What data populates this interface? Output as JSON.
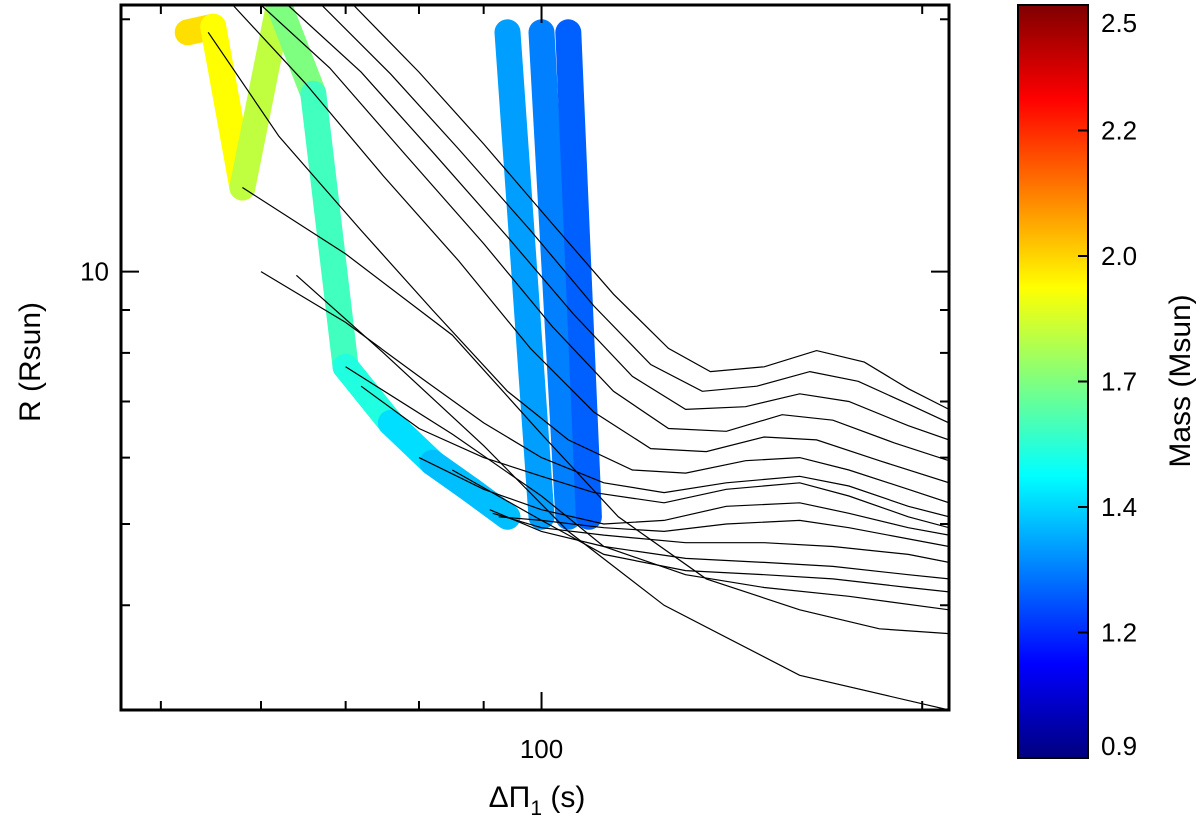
{
  "chart_data": {
    "type": "scatter",
    "xlabel": "ΔΠ",
    "xlabel_subscript": "1",
    "xlabel_unit": " (s)",
    "ylabel": "R (Rsun)",
    "x_scale": "log",
    "y_scale": "log",
    "xlim": [
      46.5,
      210
    ],
    "ylim": [
      3.0,
      20.8
    ],
    "x_major_ticks": [
      {
        "value": 100,
        "label": "100"
      }
    ],
    "x_minor_ticks": [
      50,
      60,
      70,
      80,
      90,
      200
    ],
    "y_major_ticks": [
      {
        "value": 10,
        "label": "10"
      }
    ],
    "y_minor_ticks": [
      4,
      5,
      6,
      7,
      8,
      9,
      20
    ],
    "grid": false,
    "colorbar": {
      "label": "Mass (Msun)",
      "range": [
        0.9,
        2.5
      ],
      "ticks": [
        "0.9",
        "1.2",
        "1.4",
        "1.7",
        "2.0",
        "2.2",
        "2.5"
      ],
      "colormap": "jet",
      "colormap_stops": [
        "#00007f",
        "#0000ff",
        "#007fff",
        "#00ffff",
        "#7fff7f",
        "#ffff00",
        "#ff7f00",
        "#ff0000",
        "#7f0000"
      ]
    },
    "line_color": "#000000",
    "tracks": [
      {
        "mass": 1.0,
        "x": [
          64.0,
          75.0,
          90.0,
          105.0,
          125.0,
          160.0,
          210.0
        ],
        "y": [
          9.9,
          8.0,
          6.2,
          4.9,
          4.0,
          3.3,
          3.0
        ]
      },
      {
        "mass": 1.1,
        "x": [
          58.0,
          70.0,
          85.0,
          100.0,
          115.0,
          135.0,
          160.0,
          185.0,
          210.0
        ],
        "y": [
          12.6,
          10.5,
          8.4,
          6.4,
          5.1,
          4.3,
          3.95,
          3.75,
          3.7
        ]
      },
      {
        "mass": 1.2,
        "x": [
          70.0,
          85.0,
          100.0,
          112.0,
          130.0,
          150.0,
          175.0,
          210.0
        ],
        "y": [
          7.7,
          6.4,
          5.4,
          4.7,
          4.35,
          4.2,
          4.1,
          3.95
        ]
      },
      {
        "mass": 1.3,
        "x": [
          85.0,
          100.0,
          112.0,
          130.0,
          150.0,
          170.0,
          195.0,
          210.0
        ],
        "y": [
          5.8,
          5.05,
          4.6,
          4.4,
          4.35,
          4.3,
          4.2,
          4.15
        ]
      },
      {
        "mass": 1.4,
        "x": [
          91.0,
          100.0,
          112.0,
          130.0,
          150.0,
          170.0,
          195.0,
          210.0
        ],
        "y": [
          5.2,
          4.9,
          4.7,
          4.55,
          4.5,
          4.45,
          4.35,
          4.3
        ]
      },
      {
        "mass": 1.5,
        "x": [
          91.5,
          100.0,
          112.0,
          130.0,
          150.0,
          170.0,
          195.0,
          210.0
        ],
        "y": [
          5.15,
          4.95,
          4.85,
          4.75,
          4.75,
          4.7,
          4.6,
          4.5
        ]
      },
      {
        "mass": 1.55,
        "x": [
          92.5,
          100.0,
          112.0,
          125.0,
          140.0,
          160.0,
          175.0,
          195.0,
          210.0
        ],
        "y": [
          5.1,
          5.05,
          4.95,
          4.9,
          5.0,
          5.05,
          4.95,
          4.8,
          4.7
        ]
      },
      {
        "mass": 1.6,
        "x": [
          80.0,
          90.0,
          100.0,
          112.0,
          125.0,
          140.0,
          160.0,
          175.0,
          195.0,
          210.0
        ],
        "y": [
          6.0,
          5.5,
          5.2,
          5.0,
          5.05,
          5.25,
          5.3,
          5.15,
          4.95,
          4.85
        ]
      },
      {
        "mass": 1.65,
        "x": [
          72.0,
          80.0,
          90.0,
          100.0,
          110.0,
          125.0,
          140.0,
          160.0,
          175.0,
          195.0,
          210.0
        ],
        "y": [
          7.3,
          6.5,
          6.0,
          5.7,
          5.45,
          5.3,
          5.5,
          5.6,
          5.4,
          5.1,
          4.95
        ]
      },
      {
        "mass": 1.7,
        "x": [
          60.0,
          70.0,
          80.0,
          90.0,
          100.0,
          112.0,
          125.0,
          140.0,
          160.0,
          175.0,
          195.0,
          210.0
        ],
        "y": [
          10.0,
          8.7,
          7.5,
          6.6,
          6.0,
          5.6,
          5.45,
          5.6,
          5.7,
          5.55,
          5.25,
          5.1
        ]
      },
      {
        "mass": 1.75,
        "x": [
          54.5,
          62.0,
          72.0,
          82.0,
          94.0,
          105.0,
          118.0,
          130.0,
          145.0,
          160.0,
          175.0,
          195.0,
          210.0
        ],
        "y": [
          19.3,
          14.5,
          11.2,
          9.0,
          7.2,
          6.3,
          5.8,
          5.75,
          5.95,
          6.0,
          5.8,
          5.5,
          5.3
        ]
      },
      {
        "mass": 1.8,
        "x": [
          57.0,
          65.0,
          75.0,
          86.0,
          98.0,
          110.0,
          122.0,
          135.0,
          150.0,
          165.0,
          185.0,
          210.0
        ],
        "y": [
          20.8,
          16.8,
          13.0,
          10.3,
          8.1,
          6.8,
          6.15,
          6.1,
          6.35,
          6.3,
          5.95,
          5.6
        ]
      },
      {
        "mass": 1.85,
        "x": [
          60.0,
          68.0,
          78.0,
          90.0,
          102.0,
          114.0,
          126.0,
          140.0,
          155.0,
          170.0,
          190.0,
          210.0
        ],
        "y": [
          20.8,
          17.5,
          13.8,
          10.8,
          8.6,
          7.2,
          6.5,
          6.45,
          6.75,
          6.65,
          6.25,
          5.95
        ]
      },
      {
        "mass": 1.9,
        "x": [
          63.0,
          72.0,
          82.0,
          94.0,
          106.0,
          118.0,
          130.0,
          145.0,
          160.0,
          175.0,
          195.0,
          210.0
        ],
        "y": [
          20.8,
          17.3,
          13.9,
          11.0,
          8.9,
          7.5,
          6.85,
          6.9,
          7.15,
          7.0,
          6.55,
          6.3
        ]
      },
      {
        "mass": 1.95,
        "x": [
          67.0,
          76.0,
          86.0,
          98.0,
          110.0,
          122.0,
          134.0,
          148.0,
          163.0,
          178.0,
          195.0,
          210.0
        ],
        "y": [
          20.8,
          17.2,
          14.0,
          11.2,
          9.1,
          7.75,
          7.2,
          7.3,
          7.6,
          7.4,
          6.95,
          6.6
        ]
      },
      {
        "mass": 2.0,
        "x": [
          71.0,
          80.0,
          90.0,
          102.0,
          114.0,
          126.0,
          136.0,
          150.0,
          165.0,
          180.0,
          195.0,
          210.0
        ],
        "y": [
          20.8,
          17.3,
          14.2,
          11.4,
          9.4,
          8.1,
          7.6,
          7.7,
          8.05,
          7.8,
          7.25,
          6.85
        ]
      }
    ],
    "mass_band": {
      "x": [
        52.5,
        55.0,
        58.0,
        62.0,
        66.0,
        70.0,
        76.0,
        82.0,
        88.0,
        94.0,
        100.0,
        105.0,
        109.0
      ],
      "mass": [
        1.95,
        1.9,
        1.8,
        1.7,
        1.6,
        1.55,
        1.45,
        1.4,
        1.4,
        1.35,
        1.3,
        1.25,
        1.2
      ]
    }
  }
}
